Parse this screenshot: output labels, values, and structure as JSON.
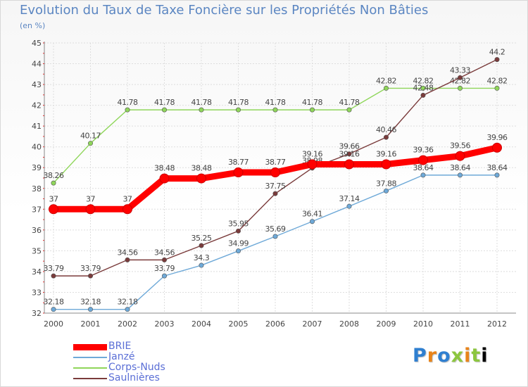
{
  "chart_data": {
    "type": "line",
    "title": "Evolution du Taux de Taxe Foncière sur les Propriétés Non Bâties",
    "subtitle": "(en %)",
    "categories": [
      "2000",
      "2001",
      "2002",
      "2003",
      "2004",
      "2005",
      "2006",
      "2007",
      "2008",
      "2009",
      "2010",
      "2011",
      "2012"
    ],
    "ylim": [
      32,
      45
    ],
    "yticks": [
      32,
      33,
      34,
      35,
      36,
      37,
      38,
      39,
      40,
      41,
      42,
      43,
      44,
      45
    ],
    "grid": true,
    "legend_position": "bottom-left",
    "series": [
      {
        "name": "Corps-Nuds",
        "color": "#8fd65a",
        "values": [
          38.26,
          40.17,
          41.78,
          41.78,
          41.78,
          41.78,
          41.78,
          41.78,
          41.78,
          42.82,
          42.82,
          42.82,
          42.82
        ],
        "labels": [
          "38.26",
          "40.17",
          "41.78",
          "41.78",
          "41.78",
          "41.78",
          "41.78",
          "41.78",
          "41.78",
          "42.82",
          "42.82",
          "42.82",
          "42.82"
        ]
      },
      {
        "name": "Saulnières",
        "color": "#7a3b3b",
        "values": [
          33.79,
          33.79,
          34.56,
          34.56,
          35.25,
          35.95,
          37.75,
          38.98,
          39.66,
          40.46,
          42.48,
          43.33,
          44.2
        ],
        "labels": [
          "33.79",
          "33.79",
          "34.56",
          "34.56",
          "35.25",
          "35.95",
          "37.75",
          "38.98",
          "39.66",
          "40.46",
          "42.48",
          "43.33",
          "44.2"
        ]
      },
      {
        "name": "Janzé",
        "color": "#6ea9d8",
        "values": [
          32.18,
          32.18,
          32.18,
          33.79,
          34.3,
          34.99,
          35.69,
          36.41,
          37.14,
          37.88,
          38.64,
          38.64,
          38.64
        ],
        "labels": [
          "32.18",
          "32.18",
          "32.18",
          "33.79",
          "34.3",
          "34.99",
          "35.69",
          "36.41",
          "37.14",
          "37.88",
          "38.64",
          "38.64",
          "38.64"
        ]
      },
      {
        "name": "BRIE",
        "color": "#ff0000",
        "values": [
          37,
          37,
          37,
          38.48,
          38.48,
          38.77,
          38.77,
          39.16,
          39.16,
          39.16,
          39.36,
          39.56,
          39.96
        ],
        "labels": [
          "37",
          "37",
          "37",
          "38.48",
          "38.48",
          "38.77",
          "38.77",
          "39.16",
          "39.16",
          "39.16",
          "39.36",
          "39.56",
          "39.96"
        ]
      }
    ]
  },
  "legend": {
    "items": [
      {
        "name": "BRIE",
        "color": "#ff0000"
      },
      {
        "name": "Janzé",
        "color": "#6ea9d8"
      },
      {
        "name": "Corps-Nuds",
        "color": "#8fd65a"
      },
      {
        "name": "Saulnières",
        "color": "#7a3b3b"
      }
    ]
  },
  "logo": {
    "text": [
      "P",
      "r",
      "o",
      "x",
      "i",
      "t",
      "i"
    ]
  }
}
